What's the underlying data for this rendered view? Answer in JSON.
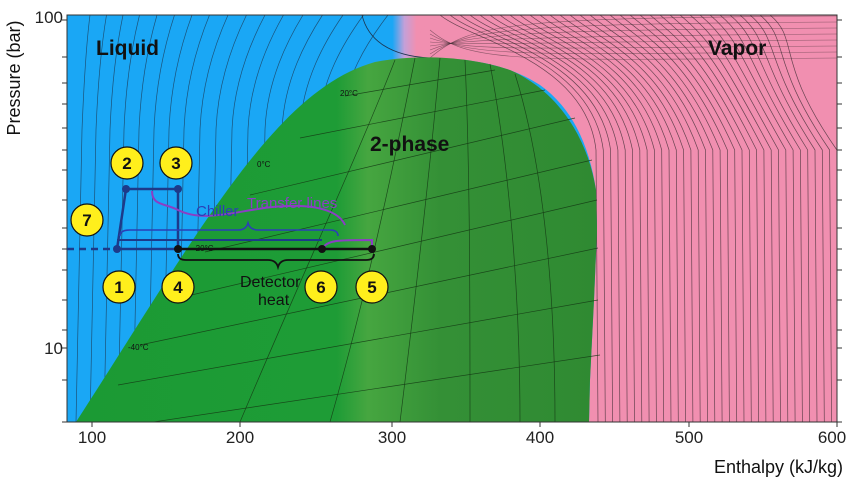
{
  "chart_data": {
    "type": "diagram",
    "title": "",
    "xlabel": "Enthalpy (kJ/kg)",
    "ylabel": "Pressure (bar)",
    "x_ticks": [
      "100",
      "200",
      "300",
      "400",
      "500",
      "600"
    ],
    "y_ticks": [
      "100",
      "10"
    ],
    "xlim": [
      80,
      600
    ],
    "ylim_log": [
      6.3,
      100
    ],
    "regions": [
      {
        "label": "Liquid",
        "color": "#1aa7f5"
      },
      {
        "label": "2-phase",
        "color": "#3c9a3c"
      },
      {
        "label": "Vapor",
        "color": "#f18fb0"
      }
    ],
    "isotherm_labels": [
      "20°C",
      "0°C",
      "-20°C",
      "-40°C"
    ],
    "cycle_points": [
      {
        "label": "1",
        "h": 115,
        "p": 20
      },
      {
        "label": "2",
        "h": 123,
        "p": 30
      },
      {
        "label": "3",
        "h": 155,
        "p": 30
      },
      {
        "label": "4",
        "h": 155,
        "p": 20
      },
      {
        "label": "5",
        "h": 287,
        "p": 20
      },
      {
        "label": "6",
        "h": 252,
        "p": 20
      },
      {
        "label": "7",
        "h": 82,
        "p": 20
      }
    ],
    "annotations": {
      "chiller": "Chiller",
      "transfer_lines": "Transfer lines",
      "detector_line1": "Detector",
      "detector_line2": "heat"
    },
    "colors": {
      "cycle_line": "#1d3a8a",
      "transfer": "#8b3ec4",
      "badge_fill": "#ffef1c"
    }
  }
}
